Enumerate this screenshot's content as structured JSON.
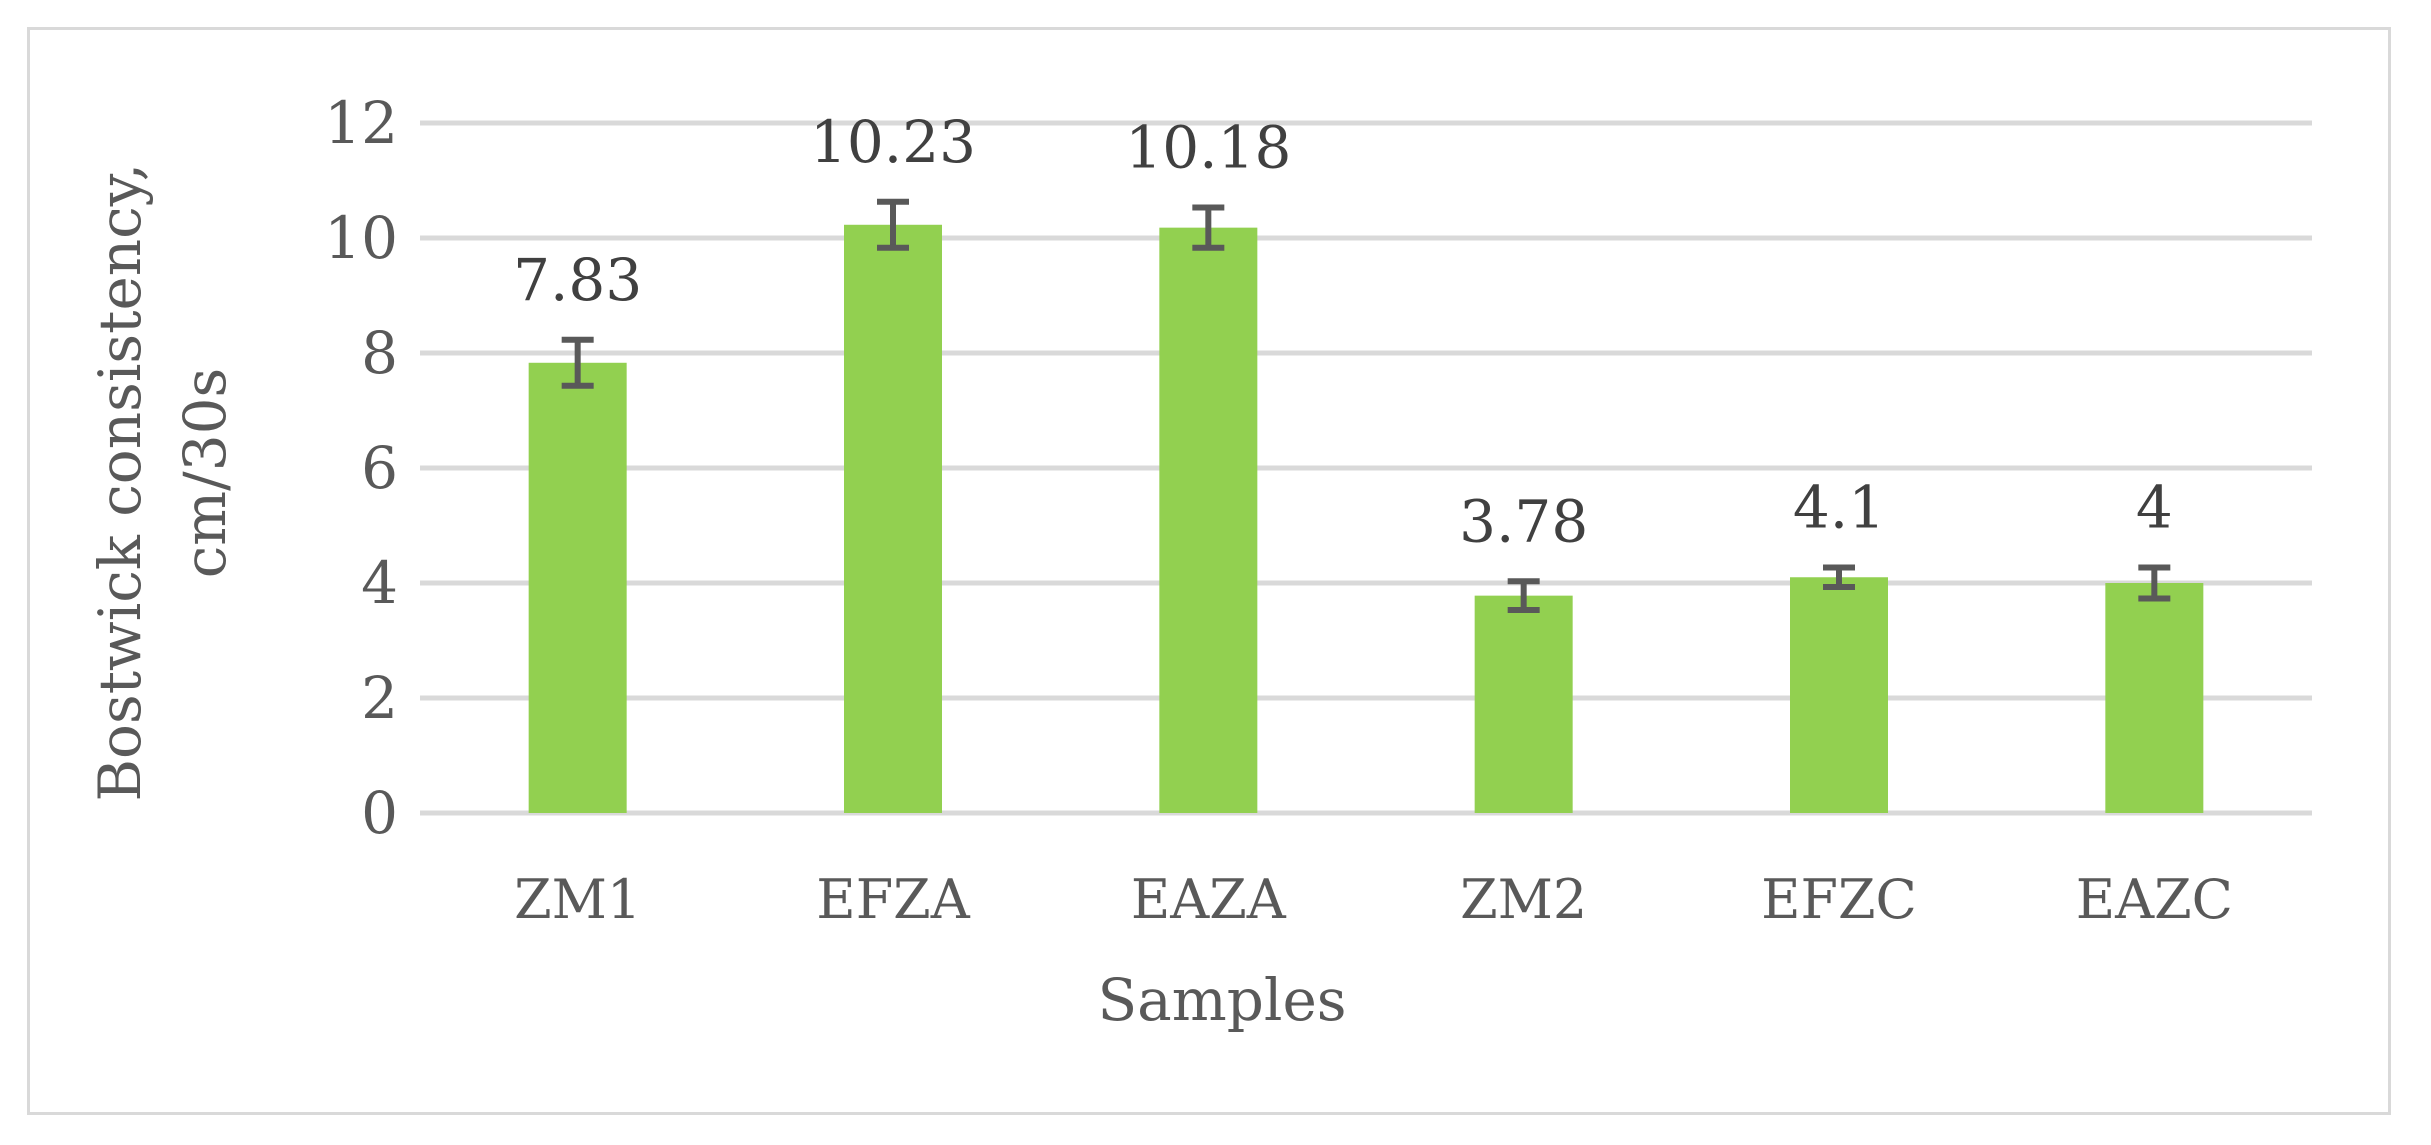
{
  "chart_data": {
    "type": "bar",
    "categories": [
      "ZM1",
      "EFZA",
      "EAZA",
      "ZM2",
      "EFZC",
      "EAZC"
    ],
    "values": [
      7.83,
      10.23,
      10.18,
      3.78,
      4.1,
      4
    ],
    "data_labels": [
      "7.83",
      "10.23",
      "10.18",
      "3.78",
      "4.1",
      "4"
    ],
    "error_bars": [
      [
        7.43,
        8.23
      ],
      [
        9.83,
        10.63
      ],
      [
        9.83,
        10.53
      ],
      [
        3.53,
        4.03
      ],
      [
        3.93,
        4.27
      ],
      [
        3.73,
        4.27
      ]
    ],
    "xlabel": "Samples",
    "ylabel_lines": [
      "Bostwick consistency,",
      "cm/30s"
    ],
    "ylim": [
      0,
      12
    ],
    "yticks": [
      0,
      2,
      4,
      6,
      8,
      10,
      12
    ],
    "grid": true,
    "legend": "none",
    "colors": {
      "bar": "#92d050",
      "error_bar": "#595959",
      "grid": "#d9d9d9",
      "text": "#595959",
      "border": "#d9d9d9"
    }
  }
}
